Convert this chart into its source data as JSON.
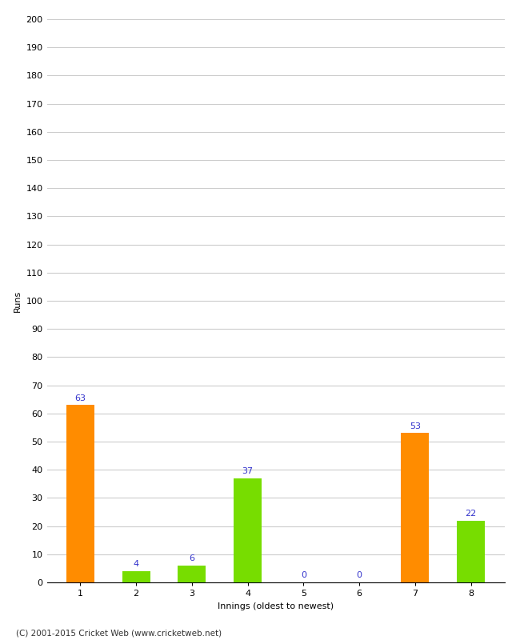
{
  "xlabel": "Innings (oldest to newest)",
  "ylabel": "Runs",
  "categories": [
    "1",
    "2",
    "3",
    "4",
    "5",
    "6",
    "7",
    "8"
  ],
  "values": [
    63,
    4,
    6,
    37,
    0,
    0,
    53,
    22
  ],
  "bar_colors": [
    "#ff8c00",
    "#77dd00",
    "#77dd00",
    "#77dd00",
    "#77dd00",
    "#77dd00",
    "#ff8c00",
    "#77dd00"
  ],
  "ylim": [
    0,
    200
  ],
  "yticks": [
    0,
    10,
    20,
    30,
    40,
    50,
    60,
    70,
    80,
    90,
    100,
    110,
    120,
    130,
    140,
    150,
    160,
    170,
    180,
    190,
    200
  ],
  "label_color": "#3333cc",
  "label_fontsize": 8,
  "axis_fontsize": 8,
  "ylabel_fontsize": 8,
  "xlabel_fontsize": 8,
  "footer": "(C) 2001-2015 Cricket Web (www.cricketweb.net)",
  "background_color": "#ffffff",
  "grid_color": "#cccccc",
  "bar_width": 0.5
}
